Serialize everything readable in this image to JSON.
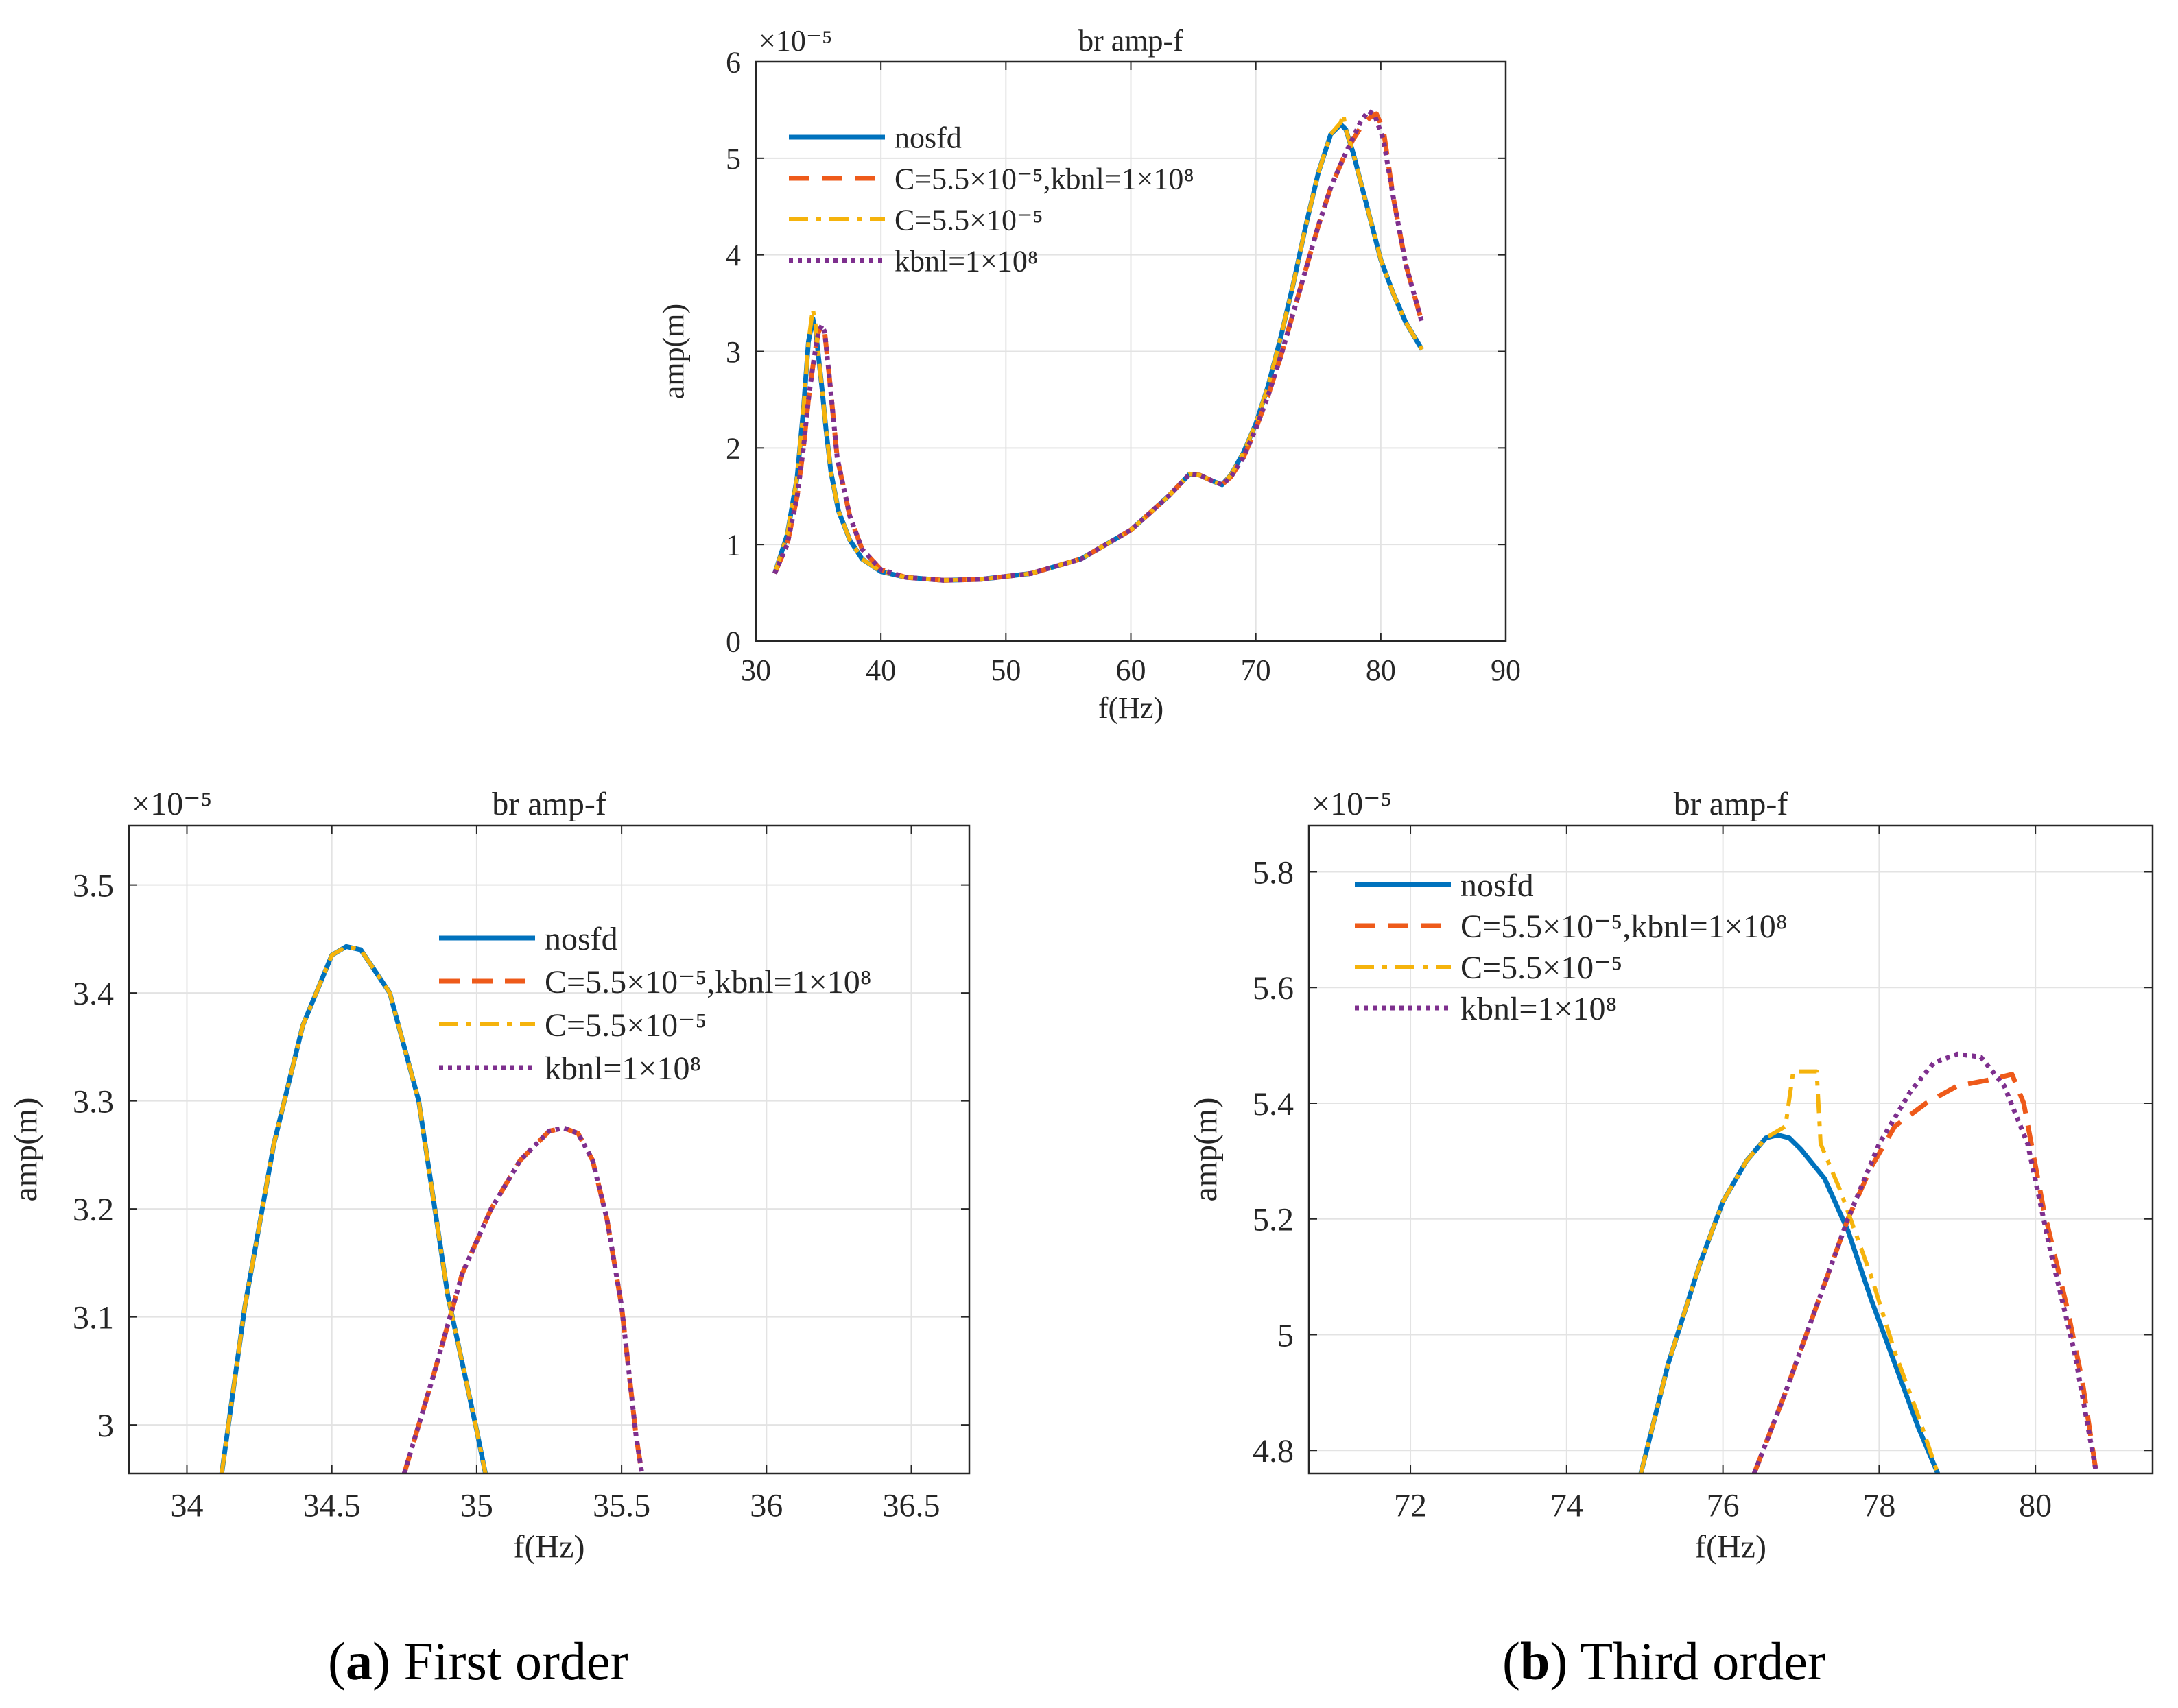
{
  "captions": {
    "a": {
      "letter": "a",
      "text": "First order"
    },
    "b": {
      "letter": "b",
      "text": "Third order"
    }
  },
  "legend_labels": [
    "nosfd",
    "C=5.5×10⁻⁵,kbnl=1×10⁸",
    "C=5.5×10⁻⁵",
    "kbnl=1×10⁸"
  ],
  "series_colors": [
    "#0072BD",
    "#EE5A1A",
    "#F5B30C",
    "#7E2F8E"
  ],
  "chart_data": [
    {
      "id": "top",
      "type": "line",
      "title": "br amp-f",
      "xlabel": "f(Hz)",
      "ylabel": "amp(m)",
      "y_exponent": "×10⁻⁵",
      "xlim": [
        30,
        90
      ],
      "ylim": [
        0,
        6
      ],
      "xticks": [
        30,
        40,
        50,
        60,
        70,
        80,
        90
      ],
      "yticks": [
        0,
        1,
        2,
        3,
        4,
        5,
        6
      ],
      "grid": true,
      "legend_position": "top-left",
      "series": [
        {
          "name": "nosfd",
          "x": [
            31.5,
            32.5,
            33.3,
            33.8,
            34.2,
            34.55,
            34.8,
            35.0,
            35.3,
            35.6,
            36.0,
            36.6,
            37.5,
            38.5,
            40,
            42,
            45,
            48,
            52,
            56,
            60,
            63,
            64.7,
            65.5,
            66.5,
            67.3,
            68,
            69,
            70,
            71,
            72,
            73,
            74,
            75,
            76,
            76.8,
            77.2,
            77.8,
            78.5,
            79.3,
            80,
            81,
            82,
            83.3
          ],
          "y": [
            0.7,
            1.1,
            1.7,
            2.4,
            3.1,
            3.34,
            3.2,
            2.95,
            2.6,
            2.2,
            1.75,
            1.35,
            1.05,
            0.85,
            0.72,
            0.66,
            0.63,
            0.64,
            0.7,
            0.85,
            1.15,
            1.5,
            1.73,
            1.72,
            1.66,
            1.62,
            1.72,
            1.95,
            2.25,
            2.65,
            3.15,
            3.7,
            4.3,
            4.85,
            5.25,
            5.35,
            5.3,
            5.05,
            4.7,
            4.3,
            3.95,
            3.6,
            3.3,
            3.02
          ]
        },
        {
          "name": "C=5.5×10⁻⁵,kbnl=1×10⁸",
          "x": [
            31.5,
            32.5,
            33.3,
            33.8,
            34.2,
            34.5,
            34.8,
            35.0,
            35.28,
            35.5,
            35.9,
            36.5,
            37.5,
            38.5,
            40,
            42,
            45,
            48,
            52,
            56,
            60,
            63,
            64.7,
            65.5,
            66.5,
            67.3,
            68,
            69,
            70,
            71,
            72,
            73,
            74,
            75,
            76,
            77,
            77.8,
            78.3,
            78.8,
            79.2,
            79.65,
            80.2,
            81,
            82,
            83.3
          ],
          "y": [
            0.7,
            1.0,
            1.5,
            2.0,
            2.5,
            2.8,
            3.05,
            3.2,
            3.27,
            3.2,
            2.7,
            1.9,
            1.3,
            0.95,
            0.74,
            0.66,
            0.63,
            0.64,
            0.7,
            0.85,
            1.15,
            1.5,
            1.73,
            1.72,
            1.66,
            1.62,
            1.7,
            1.9,
            2.2,
            2.55,
            2.95,
            3.4,
            3.85,
            4.3,
            4.7,
            5.0,
            5.2,
            5.3,
            5.38,
            5.43,
            5.46,
            5.3,
            4.6,
            3.9,
            3.3
          ]
        },
        {
          "name": "C=5.5×10⁻⁵",
          "x": [
            31.5,
            32.5,
            33.3,
            33.8,
            34.2,
            34.55,
            34.8,
            35.0,
            35.3,
            35.6,
            36.0,
            36.6,
            37.5,
            38.5,
            40,
            42,
            45,
            48,
            52,
            56,
            60,
            63,
            64.7,
            65.5,
            66.5,
            67.3,
            68,
            69,
            70,
            71,
            72,
            73,
            74,
            75,
            76,
            76.8,
            77.0,
            77.2,
            77.8,
            78.5,
            79.3,
            80,
            81,
            82,
            83.3
          ],
          "y": [
            0.7,
            1.1,
            1.7,
            2.4,
            3.1,
            3.44,
            3.25,
            2.95,
            2.6,
            2.2,
            1.75,
            1.35,
            1.05,
            0.85,
            0.72,
            0.66,
            0.63,
            0.64,
            0.7,
            0.85,
            1.15,
            1.5,
            1.73,
            1.72,
            1.66,
            1.62,
            1.72,
            1.95,
            2.25,
            2.65,
            3.15,
            3.7,
            4.3,
            4.85,
            5.25,
            5.37,
            5.46,
            5.3,
            5.05,
            4.7,
            4.3,
            3.95,
            3.6,
            3.3,
            3.02
          ]
        },
        {
          "name": "kbnl=1×10⁸",
          "x": [
            31.5,
            32.5,
            33.3,
            33.8,
            34.2,
            34.5,
            34.8,
            35.0,
            35.28,
            35.5,
            35.9,
            36.5,
            37.5,
            38.5,
            40,
            42,
            45,
            48,
            52,
            56,
            60,
            63,
            64.7,
            65.5,
            66.5,
            67.3,
            68,
            69,
            70,
            71,
            72,
            73,
            74,
            75,
            76,
            77,
            77.8,
            78.4,
            79.0,
            79.5,
            80.2,
            81,
            82,
            83.3
          ],
          "y": [
            0.7,
            1.0,
            1.5,
            2.0,
            2.5,
            2.8,
            3.05,
            3.2,
            3.27,
            3.2,
            2.7,
            1.9,
            1.3,
            0.95,
            0.74,
            0.66,
            0.63,
            0.64,
            0.7,
            0.85,
            1.15,
            1.5,
            1.73,
            1.72,
            1.66,
            1.62,
            1.7,
            1.9,
            2.2,
            2.55,
            2.95,
            3.4,
            3.85,
            4.3,
            4.7,
            5.0,
            5.22,
            5.38,
            5.49,
            5.45,
            5.2,
            4.6,
            3.9,
            3.3
          ]
        }
      ]
    },
    {
      "id": "a",
      "type": "line",
      "title": "br amp-f",
      "xlabel": "f(Hz)",
      "ylabel": "amp(m)",
      "y_exponent": "×10⁻⁵",
      "xlim": [
        33.8,
        36.7
      ],
      "ylim": [
        2.955,
        3.555
      ],
      "xticks": [
        34,
        34.5,
        35,
        35.5,
        36,
        36.5
      ],
      "yticks": [
        3,
        3.1,
        3.2,
        3.3,
        3.4,
        3.5
      ],
      "grid": true,
      "legend_position": "top-right",
      "series": [
        {
          "name": "nosfd",
          "x": [
            34.12,
            34.2,
            34.3,
            34.4,
            34.5,
            34.55,
            34.6,
            34.7,
            34.8,
            34.9,
            35.0,
            35.03
          ],
          "y": [
            2.955,
            3.11,
            3.26,
            3.37,
            3.435,
            3.443,
            3.44,
            3.4,
            3.3,
            3.12,
            2.995,
            2.955
          ]
        },
        {
          "name": "C=5.5×10⁻⁵,kbnl=1×10⁸",
          "x": [
            34.75,
            34.85,
            34.95,
            35.05,
            35.15,
            35.25,
            35.3,
            35.35,
            35.4,
            35.45,
            35.5,
            35.55,
            35.57
          ],
          "y": [
            2.955,
            3.045,
            3.14,
            3.2,
            3.245,
            3.272,
            3.275,
            3.27,
            3.245,
            3.19,
            3.11,
            2.99,
            2.955
          ]
        },
        {
          "name": "C=5.5×10⁻⁵",
          "x": [
            34.12,
            34.2,
            34.3,
            34.4,
            34.5,
            34.55,
            34.6,
            34.7,
            34.8,
            34.9,
            35.0,
            35.03
          ],
          "y": [
            2.955,
            3.11,
            3.26,
            3.37,
            3.435,
            3.443,
            3.44,
            3.4,
            3.3,
            3.12,
            2.995,
            2.955
          ]
        },
        {
          "name": "kbnl=1×10⁸",
          "x": [
            34.75,
            34.85,
            34.95,
            35.05,
            35.15,
            35.25,
            35.3,
            35.35,
            35.4,
            35.45,
            35.5,
            35.55,
            35.57
          ],
          "y": [
            2.955,
            3.045,
            3.14,
            3.2,
            3.245,
            3.272,
            3.275,
            3.27,
            3.245,
            3.19,
            3.11,
            2.99,
            2.955
          ]
        }
      ]
    },
    {
      "id": "b",
      "type": "line",
      "title": "br amp-f",
      "xlabel": "f(Hz)",
      "ylabel": "amp(m)",
      "y_exponent": "×10⁻⁵",
      "xlim": [
        70.7,
        81.5
      ],
      "ylim": [
        4.76,
        5.88
      ],
      "xticks": [
        72,
        74,
        76,
        78,
        80
      ],
      "yticks": [
        4.8,
        5,
        5.2,
        5.4,
        5.6,
        5.8
      ],
      "grid": true,
      "legend_position": "top-left",
      "series": [
        {
          "name": "nosfd",
          "x": [
            74.95,
            75.3,
            75.7,
            76.0,
            76.3,
            76.55,
            76.7,
            76.85,
            77.0,
            77.3,
            77.6,
            77.9,
            78.2,
            78.5,
            78.75
          ],
          "y": [
            4.76,
            4.95,
            5.12,
            5.23,
            5.3,
            5.34,
            5.345,
            5.34,
            5.32,
            5.27,
            5.18,
            5.06,
            4.95,
            4.84,
            4.76
          ]
        },
        {
          "name": "C=5.5×10⁻⁵,kbnl=1×10⁸",
          "x": [
            76.4,
            76.8,
            77.2,
            77.6,
            77.9,
            78.2,
            78.6,
            79.0,
            79.4,
            79.7,
            79.85,
            80.1,
            80.4,
            80.6,
            80.78
          ],
          "y": [
            4.76,
            4.9,
            5.05,
            5.2,
            5.29,
            5.36,
            5.4,
            5.43,
            5.44,
            5.45,
            5.4,
            5.22,
            5.05,
            4.92,
            4.76
          ]
        },
        {
          "name": "C=5.5×10⁻⁵",
          "x": [
            74.95,
            75.3,
            75.7,
            76.0,
            76.3,
            76.55,
            76.8,
            76.9,
            77.0,
            77.2,
            77.25,
            77.5,
            77.9,
            78.2,
            78.5,
            78.75
          ],
          "y": [
            4.76,
            4.95,
            5.12,
            5.23,
            5.3,
            5.34,
            5.36,
            5.455,
            5.455,
            5.455,
            5.33,
            5.25,
            5.1,
            4.97,
            4.86,
            4.76
          ]
        },
        {
          "name": "kbnl=1×10⁸",
          "x": [
            76.4,
            76.8,
            77.2,
            77.6,
            78.0,
            78.4,
            78.7,
            79.0,
            79.3,
            79.6,
            79.9,
            80.2,
            80.5,
            80.78
          ],
          "y": [
            4.76,
            4.9,
            5.05,
            5.2,
            5.33,
            5.42,
            5.47,
            5.485,
            5.48,
            5.43,
            5.33,
            5.14,
            4.97,
            4.76
          ]
        }
      ]
    }
  ]
}
